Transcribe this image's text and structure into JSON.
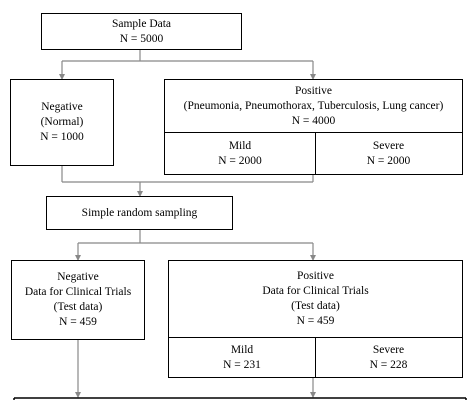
{
  "sample": {
    "title": "Sample Data",
    "count": "N = 5000"
  },
  "negative": {
    "title": "Negative",
    "subtitle": "(Normal)",
    "count": "N = 1000"
  },
  "positive": {
    "title": "Positive",
    "subtitle": "(Pneumonia, Pneumothorax, Tuberculosis, Lung cancer)",
    "count": "N = 4000",
    "mild": {
      "label": "Mild",
      "count": "N = 2000"
    },
    "severe": {
      "label": "Severe",
      "count": "N = 2000"
    }
  },
  "sampling": {
    "label": "Simple random sampling"
  },
  "test_negative": {
    "line1": "Negative",
    "line2": "Data for Clinical Trials",
    "line3": "(Test data)",
    "count": "N = 459"
  },
  "test_positive": {
    "line1": "Positive",
    "line2": "Data for Clinical Trials",
    "line3": "(Test data)",
    "count": "N = 459",
    "mild": {
      "label": "Mild",
      "count": "N = 231"
    },
    "severe": {
      "label": "Severe",
      "count": "N = 228"
    }
  },
  "colors": {
    "stroke": "#000000",
    "line": "#888888",
    "background": "#ffffff"
  }
}
